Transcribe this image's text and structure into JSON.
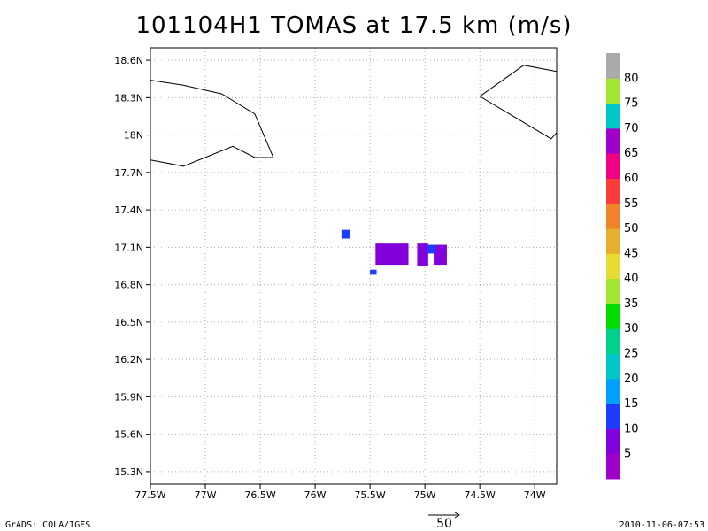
{
  "title": "101104H1 TOMAS at 17.5 km (m/s)",
  "footer": {
    "left": "GrADS: COLA/IGES",
    "right": "2010-11-06-07:53"
  },
  "vector_scale": {
    "value": "50"
  },
  "map": {
    "lon_range": [
      -77.5,
      -73.8
    ],
    "lat_range": [
      15.2,
      18.7
    ],
    "x_ticks": [
      {
        "lon": -77.5,
        "label": "77.5W"
      },
      {
        "lon": -77.0,
        "label": "77W"
      },
      {
        "lon": -76.5,
        "label": "76.5W"
      },
      {
        "lon": -76.0,
        "label": "76W"
      },
      {
        "lon": -75.5,
        "label": "75.5W"
      },
      {
        "lon": -75.0,
        "label": "75W"
      },
      {
        "lon": -74.5,
        "label": "74.5W"
      },
      {
        "lon": -74.0,
        "label": "74W"
      }
    ],
    "y_ticks": [
      {
        "lat": 18.6,
        "label": "18.6N"
      },
      {
        "lat": 18.3,
        "label": "18.3N"
      },
      {
        "lat": 18.0,
        "label": "18N"
      },
      {
        "lat": 17.7,
        "label": "17.7N"
      },
      {
        "lat": 17.4,
        "label": "17.4N"
      },
      {
        "lat": 17.1,
        "label": "17.1N"
      },
      {
        "lat": 16.8,
        "label": "16.8N"
      },
      {
        "lat": 16.5,
        "label": "16.5N"
      },
      {
        "lat": 16.2,
        "label": "16.2N"
      },
      {
        "lat": 15.9,
        "label": "15.9N"
      },
      {
        "lat": 15.6,
        "label": "15.6N"
      },
      {
        "lat": 15.3,
        "label": "15.3N"
      }
    ],
    "grid": true,
    "coastlines": [
      [
        [
          -77.5,
          18.44
        ],
        [
          -77.2,
          18.4
        ],
        [
          -76.85,
          18.33
        ],
        [
          -76.55,
          18.17
        ],
        [
          -76.38,
          17.82
        ],
        [
          -76.55,
          17.82
        ],
        [
          -76.75,
          17.91
        ],
        [
          -77.2,
          17.75
        ],
        [
          -77.5,
          17.8
        ]
      ],
      [
        [
          -73.8,
          18.51
        ],
        [
          -74.1,
          18.56
        ],
        [
          -74.5,
          18.31
        ],
        [
          -73.85,
          17.97
        ],
        [
          -73.8,
          18.02
        ]
      ]
    ],
    "wind_cells": [
      {
        "lon": -75.76,
        "lat": 17.17,
        "w": 0.08,
        "h": 0.07,
        "level": 15
      },
      {
        "lon": -75.45,
        "lat": 16.96,
        "w": 0.3,
        "h": 0.17,
        "level": 10
      },
      {
        "lon": -75.5,
        "lat": 16.88,
        "w": 0.06,
        "h": 0.04,
        "level": 15
      },
      {
        "lon": -75.07,
        "lat": 16.95,
        "w": 0.1,
        "h": 0.18,
        "level": 10
      },
      {
        "lon": -74.92,
        "lat": 16.96,
        "w": 0.12,
        "h": 0.16,
        "level": 10
      },
      {
        "lon": -74.98,
        "lat": 17.05,
        "w": 0.08,
        "h": 0.07,
        "level": 15
      }
    ],
    "colorbar": {
      "colors": [
        "#a000c8",
        "#8200dc",
        "#1e3cff",
        "#00a0ff",
        "#00c8c8",
        "#00d28c",
        "#00dc00",
        "#a0e632",
        "#e6dc32",
        "#e6af2d",
        "#f08228",
        "#fa3c3c",
        "#f00082",
        "#a000c8",
        "#00c8c8",
        "#a0e632",
        "#aaaaaa"
      ],
      "labels": [
        "5",
        "10",
        "15",
        "20",
        "25",
        "30",
        "35",
        "40",
        "45",
        "50",
        "55",
        "60",
        "65",
        "70",
        "75",
        "80"
      ]
    }
  }
}
